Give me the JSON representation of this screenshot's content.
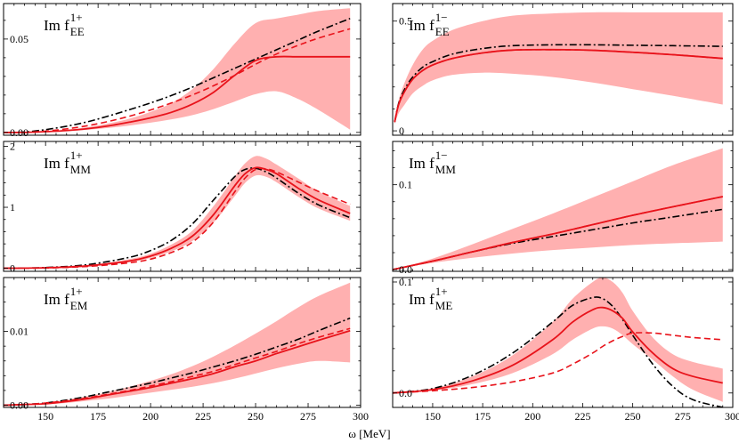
{
  "figure": {
    "xlabel": "ω [MeV]"
  },
  "chart_data": [
    {
      "type": "line",
      "panel": "top-left",
      "title": "Im f_EE^{1+}",
      "label_main": "Im f",
      "label_sub": "EE",
      "label_sup": "1+",
      "xlim": [
        130,
        300
      ],
      "ylim": [
        -0.0015,
        0.069
      ],
      "xticks": [
        150,
        175,
        200,
        225,
        250,
        275,
        300
      ],
      "xtick_labels": [
        "",
        "",
        "",
        "",
        "",
        "",
        ""
      ],
      "yticks": [
        0,
        0.05
      ],
      "ytick_labels": [
        "0.00",
        "0.05"
      ],
      "x": [
        130,
        140,
        150,
        160,
        170,
        180,
        190,
        200,
        210,
        220,
        230,
        240,
        250,
        260,
        270,
        280,
        295
      ],
      "band": {
        "lower": [
          0,
          0,
          0.0003,
          0.0007,
          0.0014,
          0.0024,
          0.0037,
          0.0052,
          0.007,
          0.0093,
          0.0125,
          0.0165,
          0.0205,
          0.022,
          0.018,
          0.012,
          0.0015
        ],
        "upper": [
          0,
          0,
          0.0005,
          0.0014,
          0.0028,
          0.0048,
          0.0074,
          0.011,
          0.0157,
          0.0232,
          0.034,
          0.0475,
          0.0585,
          0.061,
          0.063,
          0.065,
          0.0665
        ]
      },
      "series": [
        {
          "name": "solid",
          "style": "solid",
          "values": [
            0,
            0,
            0.0004,
            0.001,
            0.002,
            0.0035,
            0.0055,
            0.0078,
            0.0108,
            0.0152,
            0.0215,
            0.0305,
            0.0385,
            0.0405,
            0.0405,
            0.0405,
            0.0405
          ]
        },
        {
          "name": "dashed",
          "style": "dashed",
          "values": [
            0,
            0,
            0.0007,
            0.0019,
            0.0036,
            0.0059,
            0.0087,
            0.012,
            0.0158,
            0.0201,
            0.025,
            0.0305,
            0.0365,
            0.042,
            0.0465,
            0.0505,
            0.0555
          ]
        },
        {
          "name": "dash-dot",
          "style": "dashdot",
          "values": [
            0,
            0.0002,
            0.0015,
            0.0033,
            0.0057,
            0.0088,
            0.0122,
            0.0158,
            0.0198,
            0.0243,
            0.0293,
            0.0343,
            0.0393,
            0.0443,
            0.0493,
            0.0543,
            0.061
          ]
        }
      ]
    },
    {
      "type": "line",
      "panel": "top-right",
      "title": "Im f_EE^{1-}",
      "label_main": "Im f",
      "label_sub": "EE",
      "label_sup": "1−",
      "xlim": [
        130,
        300
      ],
      "ylim": [
        -0.02,
        0.58
      ],
      "xticks": [
        150,
        175,
        200,
        225,
        250,
        275,
        300
      ],
      "xtick_labels": [
        "",
        "",
        "",
        "",
        "",
        "",
        ""
      ],
      "yticks": [
        0,
        0.5
      ],
      "ytick_labels": [
        "0",
        "0.5"
      ],
      "x": [
        131,
        133,
        136,
        140,
        145,
        150,
        160,
        175,
        190,
        210,
        230,
        250,
        270,
        295
      ],
      "band": {
        "lower": [
          0.03,
          0.08,
          0.12,
          0.17,
          0.205,
          0.23,
          0.255,
          0.265,
          0.26,
          0.245,
          0.22,
          0.19,
          0.16,
          0.12
        ],
        "upper": [
          0.05,
          0.14,
          0.22,
          0.3,
          0.37,
          0.41,
          0.46,
          0.5,
          0.525,
          0.535,
          0.54,
          0.54,
          0.54,
          0.54
        ]
      },
      "series": [
        {
          "name": "solid",
          "style": "solid",
          "values": [
            0.04,
            0.12,
            0.18,
            0.235,
            0.275,
            0.3,
            0.33,
            0.355,
            0.368,
            0.37,
            0.367,
            0.358,
            0.347,
            0.33
          ]
        },
        {
          "name": "dashed",
          "style": "dashed",
          "values": [
            0.04,
            0.12,
            0.18,
            0.235,
            0.275,
            0.3,
            0.33,
            0.355,
            0.368,
            0.37,
            0.367,
            0.358,
            0.347,
            0.33
          ]
        },
        {
          "name": "dash-dot",
          "style": "dashdot",
          "values": [
            0.04,
            0.125,
            0.19,
            0.245,
            0.29,
            0.315,
            0.35,
            0.375,
            0.388,
            0.392,
            0.392,
            0.39,
            0.388,
            0.385
          ]
        }
      ]
    },
    {
      "type": "line",
      "panel": "middle-left",
      "title": "Im f_MM^{1+}",
      "label_main": "Im f",
      "label_sub": "MM",
      "label_sup": "1+",
      "xlim": [
        130,
        300
      ],
      "ylim": [
        -0.05,
        2.08
      ],
      "xticks": [
        150,
        175,
        200,
        225,
        250,
        275,
        300
      ],
      "xtick_labels": [
        "",
        "",
        "",
        "",
        "",
        "",
        ""
      ],
      "yticks": [
        0,
        1,
        2
      ],
      "ytick_labels": [
        "0",
        "1",
        "2"
      ],
      "x": [
        130,
        150,
        170,
        190,
        200,
        210,
        220,
        230,
        240,
        245,
        250,
        255,
        260,
        270,
        280,
        295
      ],
      "band": {
        "lower": [
          0,
          0.005,
          0.03,
          0.1,
          0.17,
          0.28,
          0.45,
          0.75,
          1.18,
          1.4,
          1.52,
          1.5,
          1.41,
          1.18,
          0.98,
          0.78
        ],
        "upper": [
          0,
          0.01,
          0.05,
          0.15,
          0.24,
          0.39,
          0.62,
          1.02,
          1.5,
          1.72,
          1.84,
          1.8,
          1.7,
          1.48,
          1.26,
          1.02
        ]
      },
      "series": [
        {
          "name": "solid",
          "style": "solid",
          "values": [
            0,
            0.008,
            0.04,
            0.12,
            0.2,
            0.33,
            0.53,
            0.88,
            1.35,
            1.55,
            1.65,
            1.62,
            1.55,
            1.32,
            1.12,
            0.9
          ]
        },
        {
          "name": "dashed",
          "style": "dashed",
          "values": [
            0,
            0.005,
            0.03,
            0.09,
            0.15,
            0.26,
            0.43,
            0.76,
            1.25,
            1.48,
            1.62,
            1.63,
            1.58,
            1.42,
            1.26,
            1.05
          ]
        },
        {
          "name": "dash-dot",
          "style": "dashdot",
          "values": [
            0,
            0.012,
            0.06,
            0.18,
            0.29,
            0.46,
            0.73,
            1.12,
            1.5,
            1.62,
            1.64,
            1.58,
            1.48,
            1.24,
            1.04,
            0.83
          ]
        }
      ]
    },
    {
      "type": "line",
      "panel": "middle-right",
      "title": "Im f_MM^{1-}",
      "label_main": "Im f",
      "label_sub": "MM",
      "label_sup": "1−",
      "xlim": [
        130,
        300
      ],
      "ylim": [
        -0.002,
        0.151
      ],
      "xticks": [
        150,
        175,
        200,
        225,
        250,
        275,
        300
      ],
      "xtick_labels": [
        "",
        "",
        "",
        "",
        "",
        "",
        ""
      ],
      "yticks": [
        0,
        0.1
      ],
      "ytick_labels": [
        "0.0",
        "0.1"
      ],
      "x": [
        130,
        150,
        170,
        190,
        210,
        230,
        250,
        270,
        295
      ],
      "band": {
        "lower": [
          0,
          0.008,
          0.014,
          0.019,
          0.023,
          0.026,
          0.029,
          0.031,
          0.033
        ],
        "upper": [
          0,
          0.013,
          0.03,
          0.048,
          0.066,
          0.085,
          0.104,
          0.123,
          0.143
        ]
      },
      "series": [
        {
          "name": "solid",
          "style": "solid",
          "values": [
            0,
            0.01,
            0.021,
            0.032,
            0.042,
            0.053,
            0.064,
            0.074,
            0.086
          ]
        },
        {
          "name": "dashed",
          "style": "dashed",
          "values": [
            0,
            0.01,
            0.021,
            0.032,
            0.042,
            0.053,
            0.064,
            0.074,
            0.086
          ]
        },
        {
          "name": "dash-dot",
          "style": "dashdot",
          "values": [
            0,
            0.01,
            0.021,
            0.031,
            0.039,
            0.047,
            0.055,
            0.062,
            0.071
          ]
        }
      ]
    },
    {
      "type": "line",
      "panel": "bottom-left",
      "title": "Im f_EM^{1+}",
      "label_main": "Im f",
      "label_sub": "EM",
      "label_sup": "1+",
      "xlim": [
        130,
        300
      ],
      "ylim": [
        -0.0003,
        0.0173
      ],
      "xticks": [
        150,
        175,
        200,
        225,
        250,
        275,
        300
      ],
      "xtick_labels": [
        "150",
        "175",
        "200",
        "225",
        "250",
        "275",
        "300"
      ],
      "yticks": [
        0,
        0.01
      ],
      "ytick_labels": [
        "0.00",
        "0.01"
      ],
      "x": [
        130,
        140,
        150,
        160,
        170,
        180,
        190,
        200,
        210,
        220,
        230,
        240,
        250,
        260,
        270,
        280,
        295
      ],
      "band": {
        "lower": [
          0,
          0,
          0.0001,
          0.0003,
          0.0006,
          0.0009,
          0.0013,
          0.0017,
          0.0021,
          0.0025,
          0.003,
          0.0036,
          0.0043,
          0.005,
          0.0056,
          0.006,
          0.0058
        ],
        "upper": [
          0,
          0.0001,
          0.0003,
          0.0007,
          0.0012,
          0.0018,
          0.0025,
          0.0033,
          0.0042,
          0.0053,
          0.0066,
          0.0081,
          0.0097,
          0.0114,
          0.0132,
          0.0148,
          0.0166
        ]
      },
      "series": [
        {
          "name": "solid",
          "style": "solid",
          "values": [
            0,
            0.0001,
            0.0002,
            0.0005,
            0.0009,
            0.0014,
            0.0019,
            0.0024,
            0.003,
            0.0036,
            0.0043,
            0.0052,
            0.006,
            0.007,
            0.0079,
            0.0088,
            0.0101
          ]
        },
        {
          "name": "dashed",
          "style": "dashed",
          "values": [
            0,
            0.0001,
            0.0003,
            0.0006,
            0.001,
            0.0015,
            0.002,
            0.0026,
            0.0032,
            0.0039,
            0.0046,
            0.0055,
            0.0064,
            0.0073,
            0.0083,
            0.0092,
            0.0104
          ]
        },
        {
          "name": "dash-dot",
          "style": "dashdot",
          "values": [
            0,
            0.0001,
            0.0003,
            0.0007,
            0.0012,
            0.0018,
            0.0024,
            0.003,
            0.0037,
            0.0044,
            0.0052,
            0.006,
            0.0069,
            0.0079,
            0.0089,
            0.0101,
            0.0118
          ]
        }
      ]
    },
    {
      "type": "line",
      "panel": "bottom-right",
      "title": "Im f_ME^{1+}",
      "label_main": "Im f",
      "label_sub": "ME",
      "label_sup": "1+",
      "xlim": [
        130,
        300
      ],
      "ylim": [
        -0.013,
        0.104
      ],
      "xticks": [
        150,
        175,
        200,
        225,
        250,
        275,
        300
      ],
      "xtick_labels": [
        "150",
        "175",
        "200",
        "225",
        "250",
        "275",
        "300"
      ],
      "yticks": [
        0,
        0.1
      ],
      "ytick_labels": [
        "0.0",
        "0.1"
      ],
      "x": [
        130,
        150,
        170,
        190,
        210,
        220,
        230,
        235,
        240,
        245,
        250,
        260,
        270,
        280,
        295
      ],
      "band": {
        "lower": [
          0,
          0.002,
          0.008,
          0.018,
          0.035,
          0.048,
          0.058,
          0.06,
          0.058,
          0.052,
          0.044,
          0.03,
          0.015,
          0.003,
          -0.008
        ],
        "upper": [
          0,
          0.004,
          0.015,
          0.034,
          0.064,
          0.085,
          0.1,
          0.104,
          0.1,
          0.09,
          0.074,
          0.05,
          0.035,
          0.028,
          0.022
        ]
      },
      "series": [
        {
          "name": "solid",
          "style": "solid",
          "values": [
            0,
            0.003,
            0.011,
            0.025,
            0.048,
            0.064,
            0.075,
            0.077,
            0.074,
            0.067,
            0.055,
            0.036,
            0.022,
            0.015,
            0.009
          ]
        },
        {
          "name": "dashed",
          "style": "dashed",
          "values": [
            0,
            0.002,
            0.005,
            0.01,
            0.018,
            0.026,
            0.036,
            0.042,
            0.047,
            0.051,
            0.054,
            0.054,
            0.052,
            0.05,
            0.048
          ]
        },
        {
          "name": "dash-dot",
          "style": "dashdot",
          "values": [
            0,
            0.004,
            0.016,
            0.036,
            0.064,
            0.079,
            0.086,
            0.085,
            0.078,
            0.066,
            0.052,
            0.026,
            0.006,
            -0.006,
            -0.013
          ]
        }
      ]
    }
  ],
  "colors": {
    "band": "#ffb0b0",
    "solid": "#e8131b",
    "dashed": "#e8131b",
    "dashdot": "#000000",
    "frame": "#000000"
  }
}
